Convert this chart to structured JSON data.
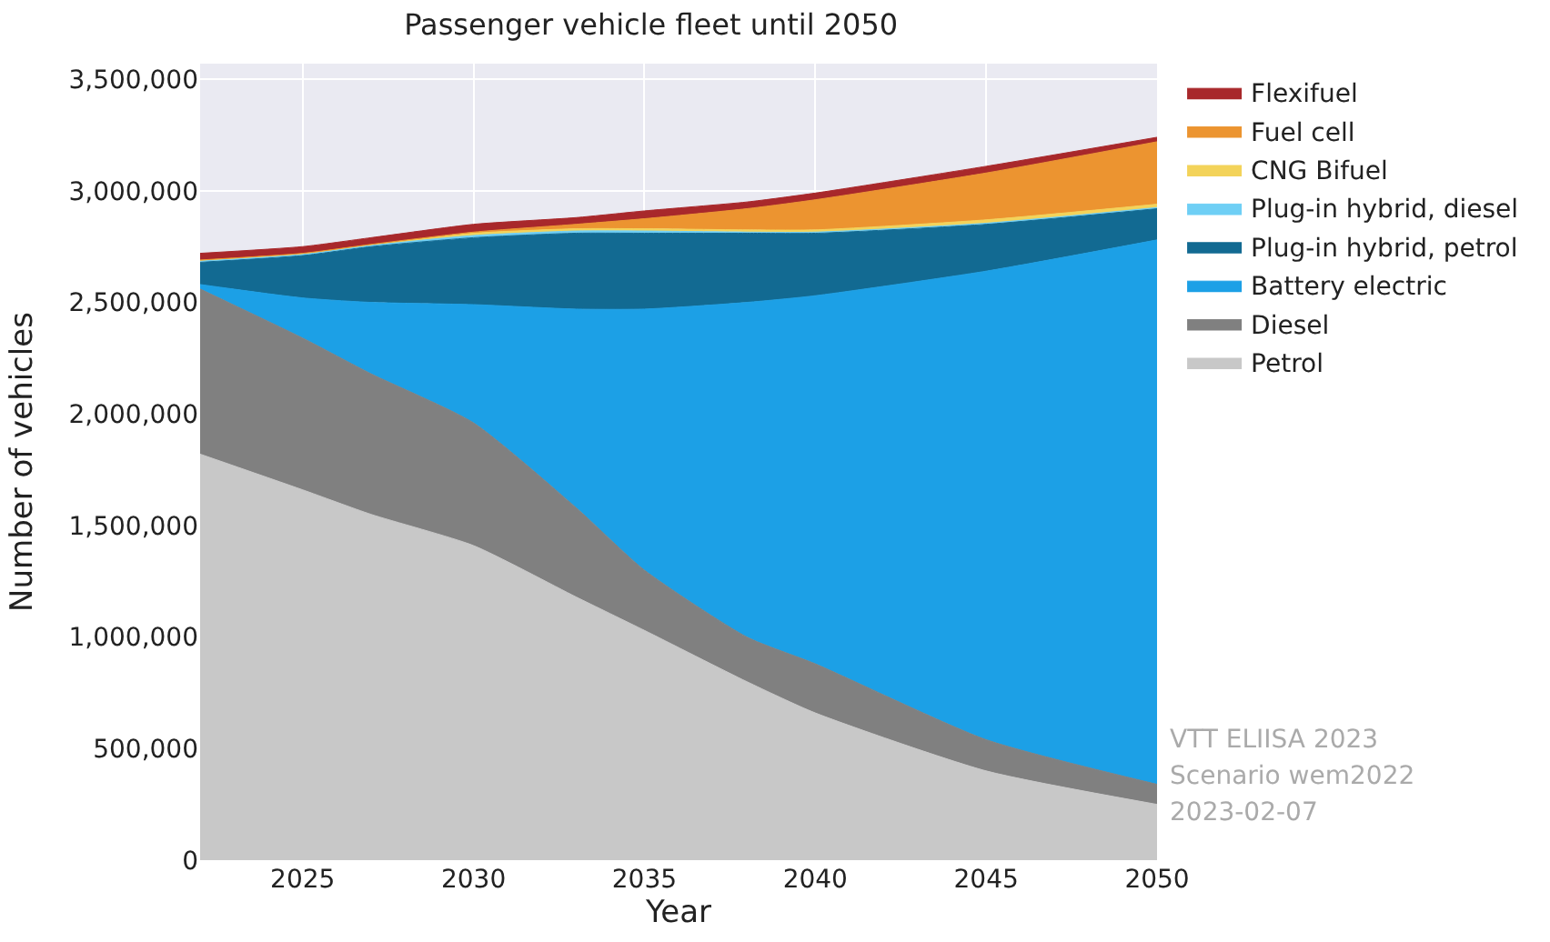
{
  "chart_data": {
    "type": "area",
    "stacked": true,
    "title": "Passenger vehicle fleet until 2050",
    "xlabel": "Year",
    "ylabel": "Number of vehicles",
    "x": [
      2022,
      2025,
      2027,
      2030,
      2033,
      2035,
      2038,
      2040,
      2045,
      2050
    ],
    "series": [
      {
        "name": "Petrol",
        "color": "#c8c8c8",
        "values": [
          1820000,
          1660000,
          1550000,
          1410000,
          1180000,
          1030000,
          800000,
          660000,
          400000,
          250000
        ]
      },
      {
        "name": "Diesel",
        "color": "#808080",
        "values": [
          740000,
          680000,
          630000,
          550000,
          400000,
          270000,
          200000,
          220000,
          140000,
          90000
        ]
      },
      {
        "name": "Battery electric",
        "color": "#1ca0e6",
        "values": [
          20000,
          180000,
          320000,
          530000,
          890000,
          1170000,
          1500000,
          1650000,
          2100000,
          2440000
        ]
      },
      {
        "name": "Plug-in hybrid, petrol",
        "color": "#126a92",
        "values": [
          100000,
          190000,
          250000,
          300000,
          340000,
          340000,
          310000,
          280000,
          210000,
          140000
        ]
      },
      {
        "name": "Plug-in hybrid, diesel",
        "color": "#6fcff5",
        "values": [
          5000,
          5000,
          5000,
          10000,
          10000,
          10000,
          5000,
          5000,
          5000,
          5000
        ]
      },
      {
        "name": "CNG Bifuel",
        "color": "#f3d35a",
        "values": [
          5000,
          5000,
          5000,
          10000,
          10000,
          10000,
          10000,
          10000,
          15000,
          15000
        ]
      },
      {
        "name": "Fuel cell",
        "color": "#ec9430",
        "values": [
          0,
          0,
          0,
          5000,
          20000,
          45000,
          95000,
          135000,
          210000,
          280000
        ]
      },
      {
        "name": "Flexifuel",
        "color": "#a8282b",
        "values": [
          30000,
          30000,
          30000,
          35000,
          30000,
          35000,
          30000,
          30000,
          30000,
          20000
        ]
      }
    ],
    "xlim": [
      2022,
      2050
    ],
    "xticks": [
      2025,
      2030,
      2035,
      2040,
      2045,
      2050
    ],
    "ylim": [
      0,
      3570000
    ],
    "yticks": [
      {
        "value": 0,
        "label": "0"
      },
      {
        "value": 500000,
        "label": "500,000"
      },
      {
        "value": 1000000,
        "label": "1,000,000"
      },
      {
        "value": 1500000,
        "label": "1,500,000"
      },
      {
        "value": 2000000,
        "label": "2,000,000"
      },
      {
        "value": 2500000,
        "label": "2,500,000"
      },
      {
        "value": 3000000,
        "label": "3,000,000"
      },
      {
        "value": 3500000,
        "label": "3,500,000"
      }
    ],
    "grid": true,
    "legend": "top right",
    "annotations": [
      "VTT ELIISA 2023",
      "Scenario wem2022",
      "2023-02-07"
    ]
  }
}
